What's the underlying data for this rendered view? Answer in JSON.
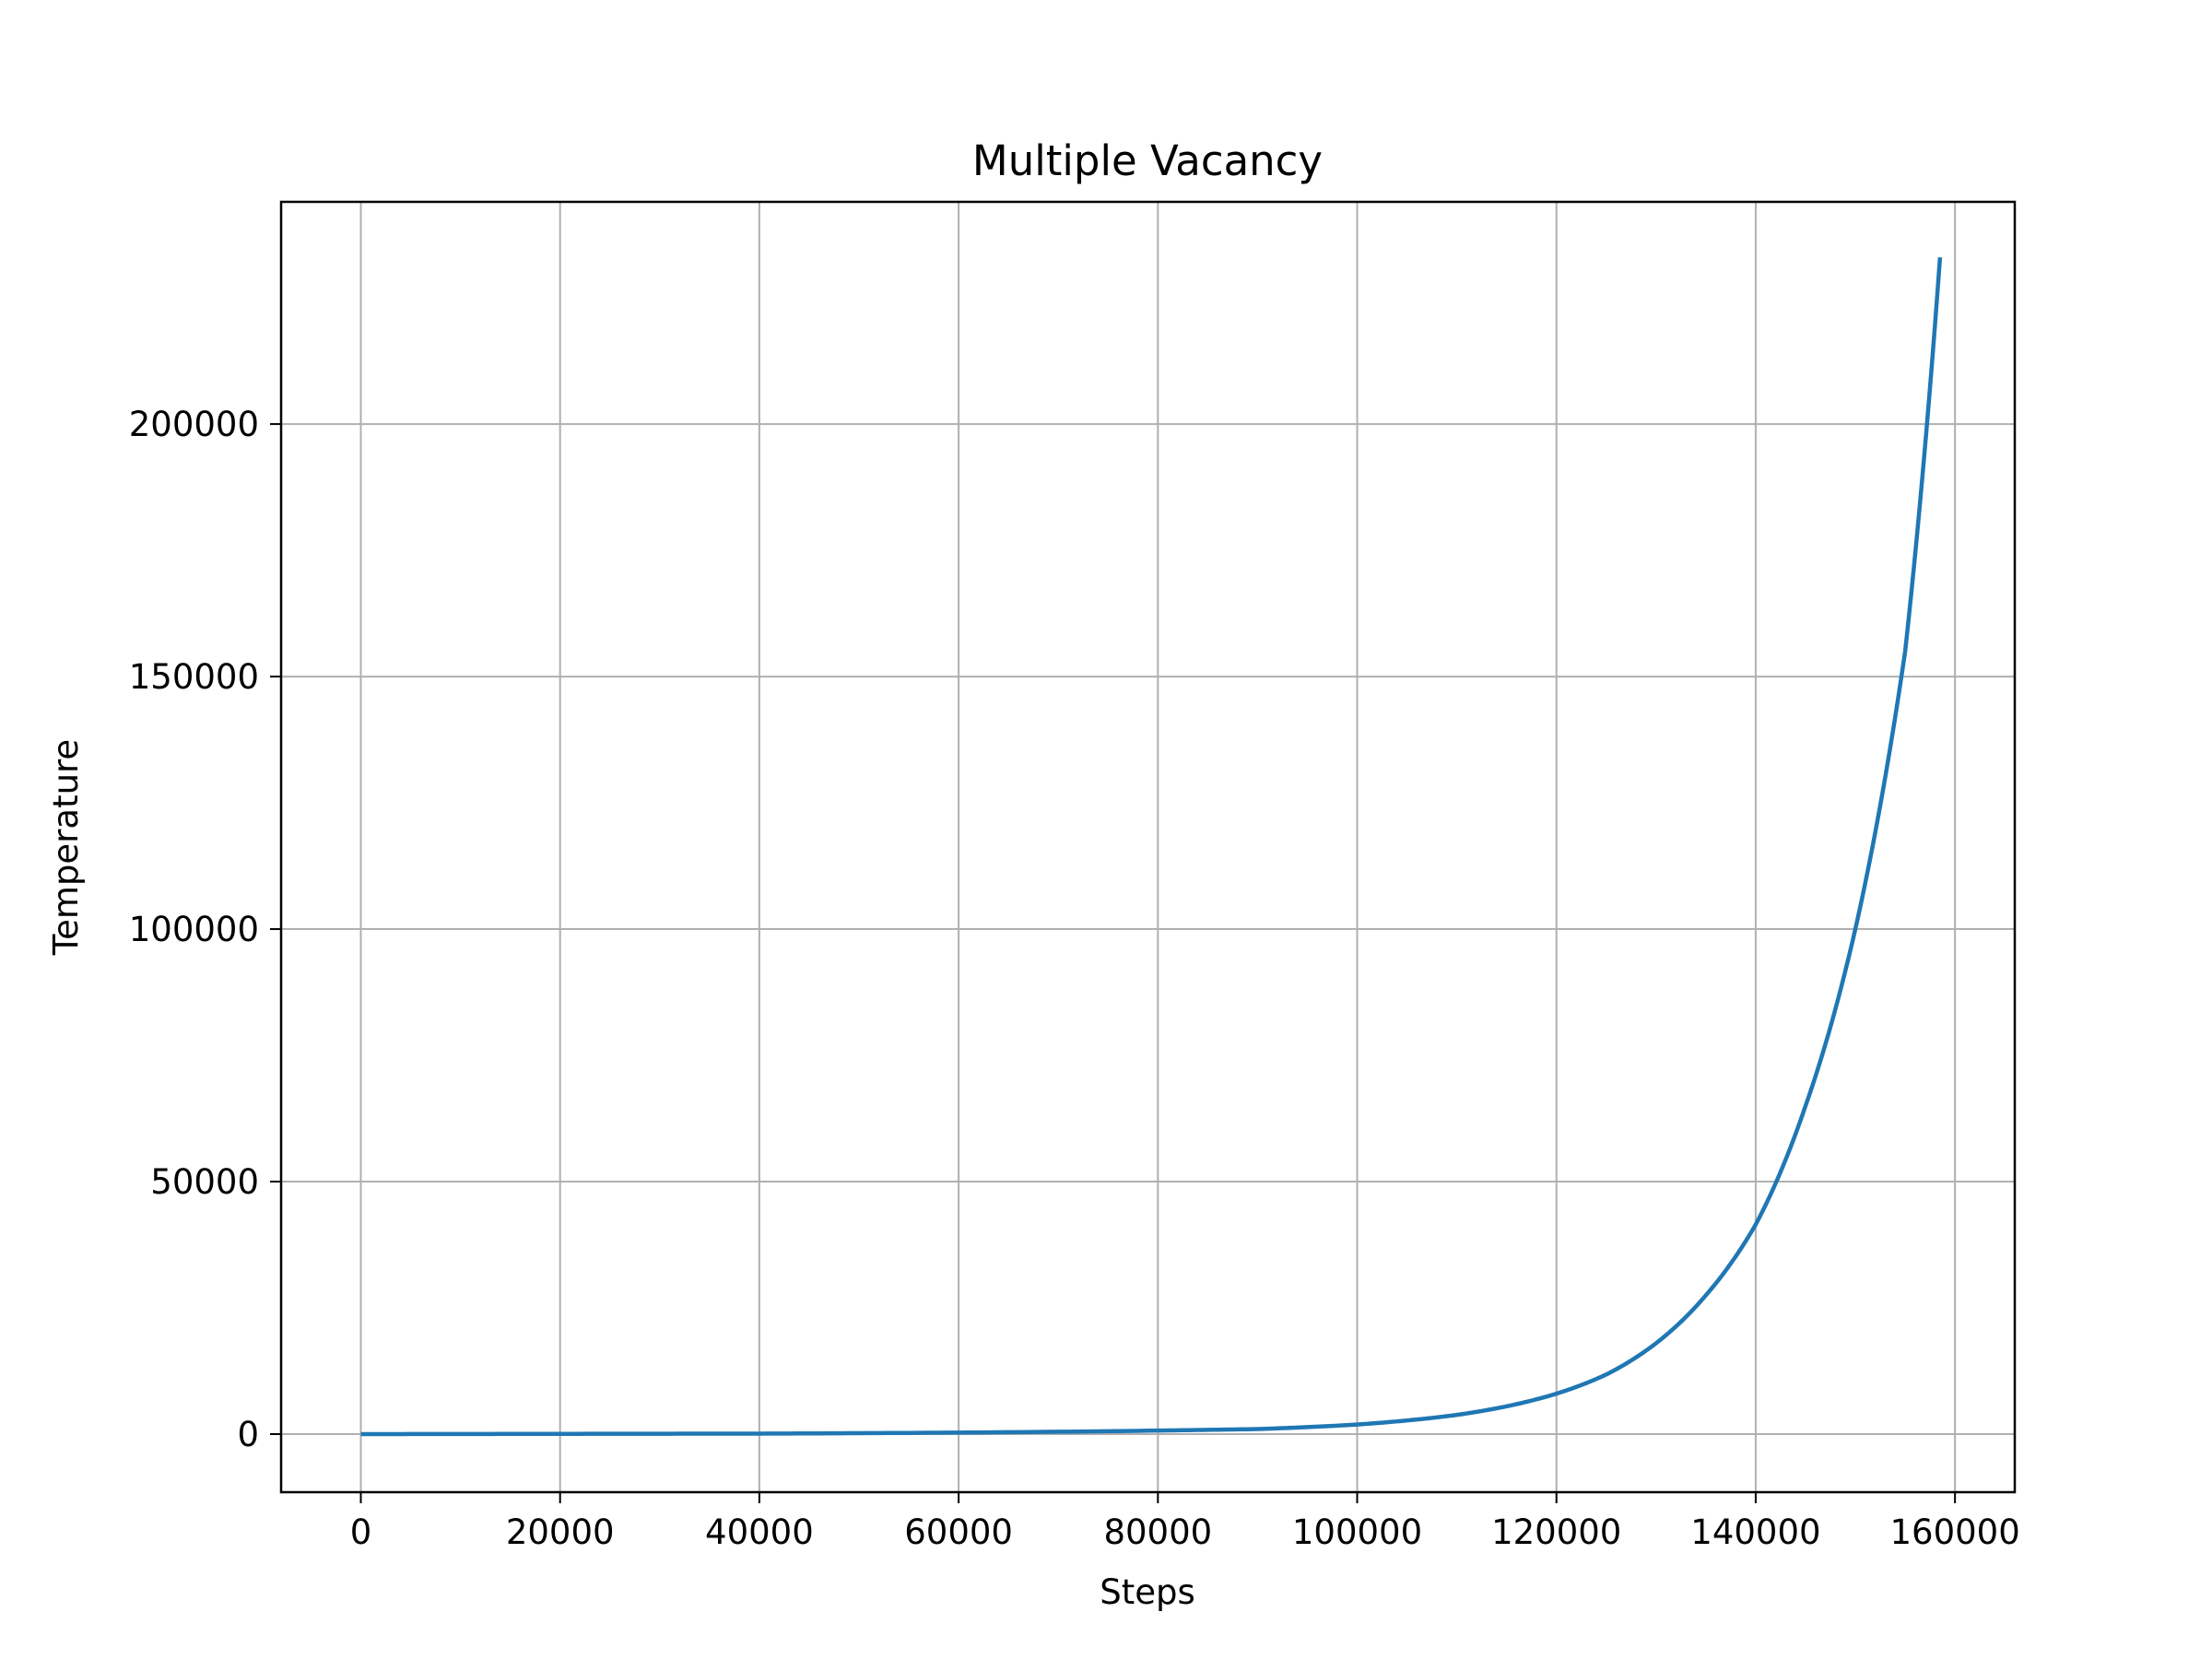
{
  "chart_data": {
    "type": "line",
    "title": "Multiple Vacancy",
    "xlabel": "Steps",
    "ylabel": "Temperature",
    "xlim": [
      -8000,
      166000
    ],
    "ylim": [
      -11500,
      244000
    ],
    "xticks": [
      0,
      20000,
      40000,
      60000,
      80000,
      100000,
      120000,
      140000,
      160000
    ],
    "xtick_labels": [
      "0",
      "20000",
      "40000",
      "60000",
      "80000",
      "100000",
      "120000",
      "140000",
      "160000"
    ],
    "yticks": [
      0,
      50000,
      100000,
      150000,
      200000
    ],
    "ytick_labels": [
      "0",
      "50000",
      "100000",
      "150000",
      "200000"
    ],
    "grid": true,
    "legend": "none",
    "series": [
      {
        "color": "#1f77b4",
        "x": [
          0,
          20000,
          40000,
          60000,
          80000,
          90000,
          100000,
          105000,
          110000,
          115000,
          120000,
          125000,
          130000,
          135000,
          140000,
          145000,
          150000,
          155000,
          158500
        ],
        "y": [
          0,
          50,
          100,
          300,
          700,
          1000,
          1900,
          2700,
          3800,
          5500,
          8000,
          11800,
          18000,
          27500,
          41500,
          65000,
          100000,
          155000,
          233000
        ]
      }
    ]
  },
  "colors": {
    "grid": "#b0b0b0",
    "axes": "#000000",
    "background": "#ffffff"
  }
}
